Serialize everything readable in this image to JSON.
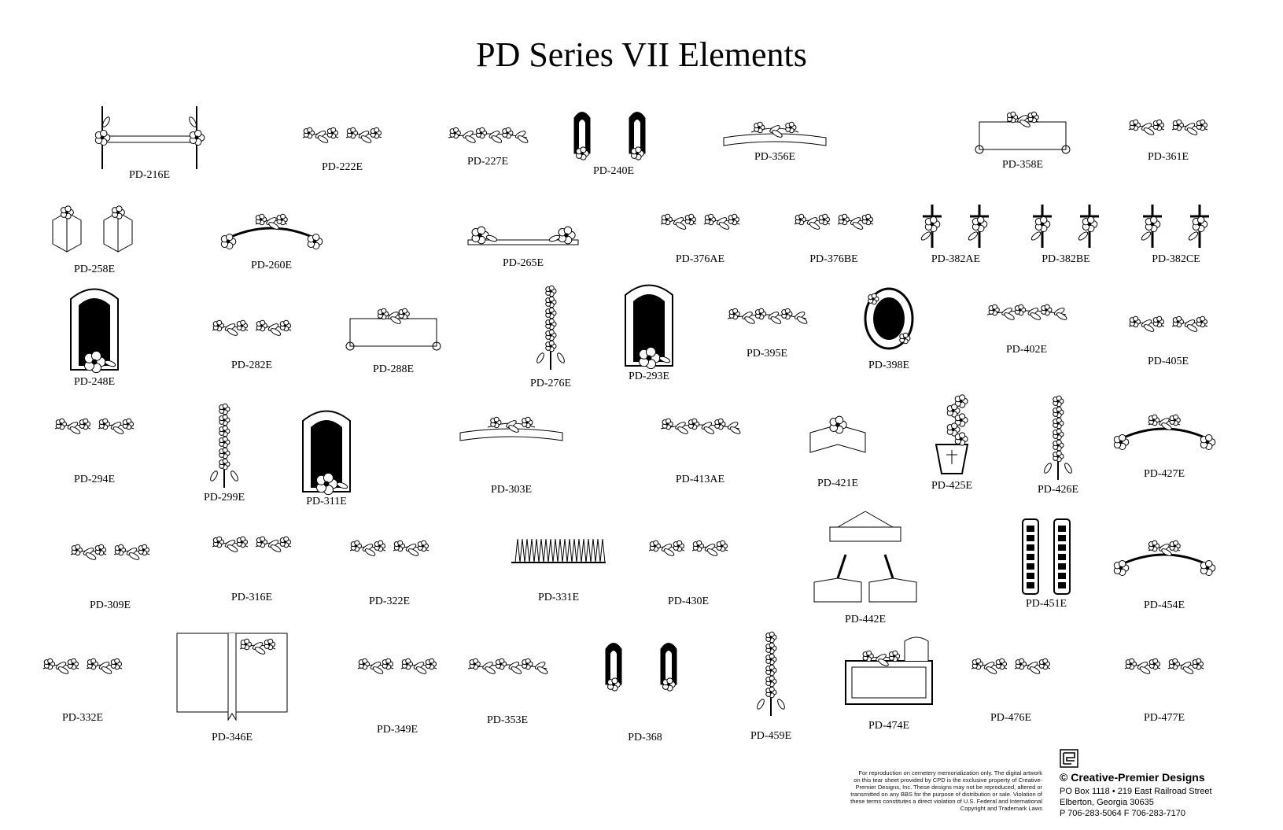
{
  "title": "PD Series VII Elements",
  "elements": [
    {
      "code": "PD-216E",
      "kind": "frame"
    },
    {
      "code": "PD-222E",
      "kind": "pair"
    },
    {
      "code": "PD-227E",
      "kind": "spray"
    },
    {
      "code": "PD-240E",
      "kind": "pair-window"
    },
    {
      "code": "PD-356E",
      "kind": "banner"
    },
    {
      "code": "PD-358E",
      "kind": "scroll"
    },
    {
      "code": "PD-361E",
      "kind": "pair"
    },
    {
      "code": "PD-258E",
      "kind": "pair-book"
    },
    {
      "code": "PD-260E",
      "kind": "arch"
    },
    {
      "code": "PD-265E",
      "kind": "bar"
    },
    {
      "code": "PD-376AE",
      "kind": "pair"
    },
    {
      "code": "PD-376BE",
      "kind": "pair"
    },
    {
      "code": "PD-382AE",
      "kind": "pair-cross"
    },
    {
      "code": "PD-382BE",
      "kind": "pair-cross"
    },
    {
      "code": "PD-382CE",
      "kind": "pair-cross"
    },
    {
      "code": "PD-248E",
      "kind": "window"
    },
    {
      "code": "PD-282E",
      "kind": "pair"
    },
    {
      "code": "PD-288E",
      "kind": "scroll"
    },
    {
      "code": "PD-276E",
      "kind": "tall"
    },
    {
      "code": "PD-293E",
      "kind": "window"
    },
    {
      "code": "PD-395E",
      "kind": "spray"
    },
    {
      "code": "PD-398E",
      "kind": "oval"
    },
    {
      "code": "PD-402E",
      "kind": "spray"
    },
    {
      "code": "PD-405E",
      "kind": "pair"
    },
    {
      "code": "PD-294E",
      "kind": "pair"
    },
    {
      "code": "PD-299E",
      "kind": "tall"
    },
    {
      "code": "PD-311E",
      "kind": "window"
    },
    {
      "code": "PD-303E",
      "kind": "banner"
    },
    {
      "code": "PD-413AE",
      "kind": "spray"
    },
    {
      "code": "PD-421E",
      "kind": "book"
    },
    {
      "code": "PD-425E",
      "kind": "vase"
    },
    {
      "code": "PD-426E",
      "kind": "tall"
    },
    {
      "code": "PD-427E",
      "kind": "arch"
    },
    {
      "code": "PD-309E",
      "kind": "pair"
    },
    {
      "code": "PD-316E",
      "kind": "pair"
    },
    {
      "code": "PD-322E",
      "kind": "pair"
    },
    {
      "code": "PD-331E",
      "kind": "grass"
    },
    {
      "code": "PD-430E",
      "kind": "pair"
    },
    {
      "code": "PD-442E",
      "kind": "hands"
    },
    {
      "code": "PD-451E",
      "kind": "pair-panel"
    },
    {
      "code": "PD-454E",
      "kind": "arch"
    },
    {
      "code": "PD-332E",
      "kind": "pair"
    },
    {
      "code": "PD-346E",
      "kind": "bigbook"
    },
    {
      "code": "PD-349E",
      "kind": "pair"
    },
    {
      "code": "PD-353E",
      "kind": "spray"
    },
    {
      "code": "PD-368",
      "kind": "pair-window"
    },
    {
      "code": "PD-459E",
      "kind": "tall"
    },
    {
      "code": "PD-474E",
      "kind": "plaque"
    },
    {
      "code": "PD-476E",
      "kind": "pair"
    },
    {
      "code": "PD-477E",
      "kind": "pair"
    }
  ],
  "disclaimer": [
    "For reproduction on cemetery memorialization only. The digital artwork",
    "on this tear sheet provided by CPD is the exclusive property of Creative-",
    "Premier Designs, Inc. These designs may not be reproduced, altered or",
    "transmitted on any BBS for the purpose of distribution or sale. Violation of",
    "these terms constitutes a direct violation of U.S. Federal and International",
    "Copyright and Trademark Laws"
  ],
  "company": {
    "name": "© Creative-Premier Designs",
    "address_line1": "PO Box 1118 • 219 East Railroad Street",
    "address_line2": "Elberton, Georgia 30635",
    "phone": "P 706-283-5064  F 706-283-7170",
    "logo_icon": "cpd-logo-icon"
  }
}
